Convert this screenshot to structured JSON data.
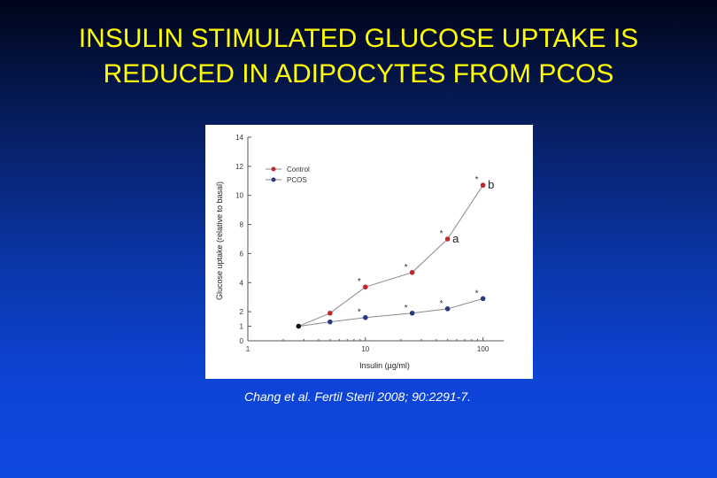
{
  "slide": {
    "title_line1": "INSULIN STIMULATED GLUCOSE UPTAKE IS",
    "title_line2": "REDUCED IN ADIPOCYTES FROM PCOS",
    "citation": "Chang et al. Fertil Steril 2008; 90:2291-7."
  },
  "colors": {
    "title": "#ffff00",
    "control": "#c0262b",
    "pcos": "#2b3a80",
    "basal": "#111111",
    "line": "#8a8a8a"
  },
  "chart_data": {
    "type": "line",
    "title": "",
    "xlabel": "Insulin (µg/ml)",
    "ylabel": "Glucose uptake (relative to basal)",
    "xscale": "log",
    "xlim": [
      1,
      150
    ],
    "ylim": [
      0,
      14
    ],
    "xticks": [
      1,
      10,
      100
    ],
    "xtick_labels": [
      "1",
      "10",
      "100"
    ],
    "yticks": [
      0,
      1,
      2,
      4,
      6,
      8,
      10,
      12,
      14
    ],
    "ytick_labels": [
      "0",
      "1",
      "2",
      "4",
      "6",
      "8",
      "10",
      "12",
      "14"
    ],
    "grid": false,
    "legend": "top-left",
    "basal_point": {
      "x": 2.7,
      "y": 1.0
    },
    "series": [
      {
        "name": "Control",
        "x": [
          2.7,
          5,
          10,
          25,
          50,
          100
        ],
        "y": [
          1.0,
          1.9,
          3.7,
          4.7,
          7.0,
          10.7
        ],
        "significant": [
          false,
          false,
          true,
          true,
          true,
          true
        ]
      },
      {
        "name": "PCOS",
        "x": [
          2.7,
          5,
          10,
          25,
          50,
          100
        ],
        "y": [
          1.0,
          1.3,
          1.6,
          1.9,
          2.2,
          2.9
        ],
        "significant": [
          false,
          false,
          true,
          true,
          true,
          true
        ]
      }
    ],
    "annotations": [
      {
        "text": "a",
        "x": 55,
        "y": 7.0
      },
      {
        "text": "b",
        "x": 110,
        "y": 10.7
      }
    ]
  }
}
